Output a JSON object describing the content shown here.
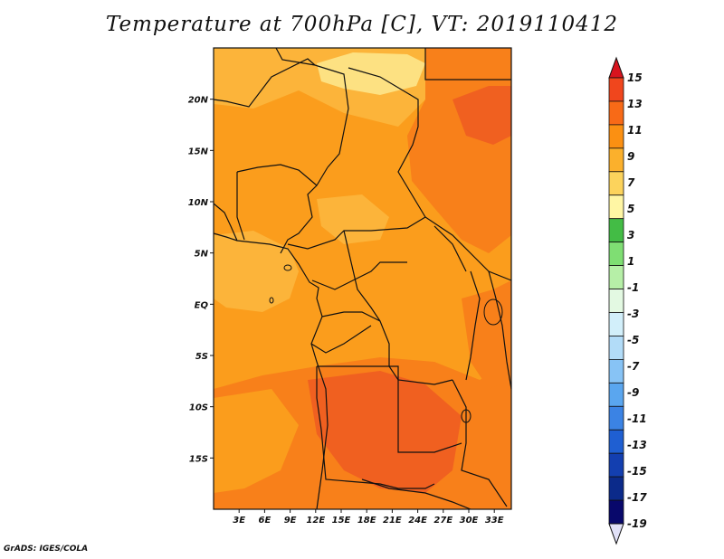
{
  "title": "Temperature at 700hPa [C], VT: 2019110412",
  "credit": "GrADS: IGES/COLA",
  "map": {
    "lon_range": [
      0,
      35
    ],
    "lat_range": [
      -20,
      25
    ],
    "lat_labels": [
      {
        "text": "20N",
        "value": 20
      },
      {
        "text": "15N",
        "value": 15
      },
      {
        "text": "10N",
        "value": 10
      },
      {
        "text": "5N",
        "value": 5
      },
      {
        "text": "EQ",
        "value": 0
      },
      {
        "text": "5S",
        "value": -5
      },
      {
        "text": "10S",
        "value": -10
      },
      {
        "text": "15S",
        "value": -15
      }
    ],
    "lon_labels": [
      {
        "text": "3E",
        "value": 3
      },
      {
        "text": "6E",
        "value": 6
      },
      {
        "text": "9E",
        "value": 9
      },
      {
        "text": "12E",
        "value": 12
      },
      {
        "text": "15E",
        "value": 15
      },
      {
        "text": "18E",
        "value": 18
      },
      {
        "text": "21E",
        "value": 21
      },
      {
        "text": "24E",
        "value": 24
      },
      {
        "text": "27E",
        "value": 27
      },
      {
        "text": "30E",
        "value": 30
      },
      {
        "text": "33E",
        "value": 33
      }
    ]
  },
  "colorbar": {
    "levels": [
      "15",
      "13",
      "11",
      "9",
      "7",
      "5",
      "3",
      "1",
      "-1",
      "-3",
      "-5",
      "-7",
      "-9",
      "-11",
      "-13",
      "-15",
      "-17",
      "-19"
    ],
    "colors": [
      "#d8141e",
      "#f0461d",
      "#f86a17",
      "#fb9012",
      "#fbb02c",
      "#fcd35c",
      "#fff6a4",
      "#43bc45",
      "#7fde73",
      "#b6efa7",
      "#e3f9e2",
      "#d2effa",
      "#b2dcf8",
      "#87c3f5",
      "#5aa6ef",
      "#3b83e4",
      "#1f5fd2",
      "#133fb0",
      "#0b2a8a",
      "#08086b"
    ],
    "top_arrow_color": "#d8141e",
    "bottom_arrow_color": "#e1e1f8"
  }
}
